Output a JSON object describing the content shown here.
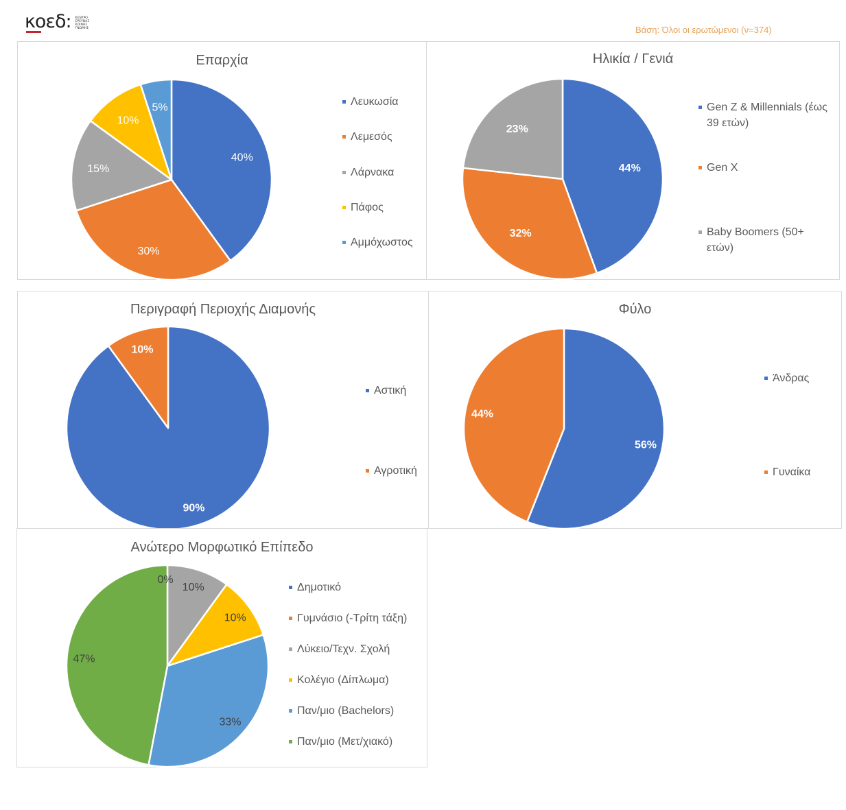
{
  "header": {
    "logo_text": "κοεδ:",
    "logo_small_lines": [
      "ΚΕΝΤΡΟ",
      "ΕΡΕΥΝΑΣ",
      "ΚΟΙΝΗΣ",
      "ΓΝΩΜΗΣ"
    ],
    "base_note": "Βάση: Όλοι οι ερωτώμενοι (ν=374)"
  },
  "chart_data": [
    {
      "type": "pie",
      "title": "Επαρχία",
      "categories": [
        "Λευκωσία",
        "Λεμεσός",
        "Λάρνακα",
        "Πάφος",
        "Αμμόχωστος"
      ],
      "values": [
        40,
        30,
        15,
        10,
        5
      ],
      "labels": [
        "40%",
        "30%",
        "15%",
        "10%",
        "5%"
      ],
      "colors": [
        "#4472c4",
        "#ed7d31",
        "#a5a5a5",
        "#ffc000",
        "#5b9bd5"
      ],
      "label_color": "#ffffff",
      "label_bold": false,
      "legend_position": "right"
    },
    {
      "type": "pie",
      "title": "Ηλικία / Γενιά",
      "categories": [
        "Gen Z & Millennials (έως 39 ετών)",
        "Gen X",
        "Baby Boomers (50+ ετών)"
      ],
      "values": [
        44,
        32,
        23
      ],
      "labels": [
        "44%",
        "32%",
        "23%"
      ],
      "colors": [
        "#4472c4",
        "#ed7d31",
        "#a5a5a5"
      ],
      "label_color": "#ffffff",
      "label_bold": true,
      "legend_position": "right"
    },
    {
      "type": "pie",
      "title": "Περιγραφή Περιοχής Διαμονής",
      "categories": [
        "Αστική",
        "Αγροτική"
      ],
      "values": [
        90,
        10
      ],
      "labels": [
        "90%",
        "10%"
      ],
      "colors": [
        "#4472c4",
        "#ed7d31"
      ],
      "label_color": "#ffffff",
      "label_bold": true,
      "legend_position": "right"
    },
    {
      "type": "pie",
      "title": "Φύλο",
      "categories": [
        "Άνδρας",
        "Γυναίκα"
      ],
      "values": [
        56,
        44
      ],
      "labels": [
        "56%",
        "44%"
      ],
      "colors": [
        "#4472c4",
        "#ed7d31"
      ],
      "label_color": "#ffffff",
      "label_bold": true,
      "legend_position": "right"
    },
    {
      "type": "pie",
      "title": "Ανώτερο Μορφωτικό Επίπεδο",
      "categories": [
        "Δημοτικό",
        "Γυμνάσιο (-Τρίτη τάξη)",
        "Λύκειο/Τεχν. Σχολή",
        "Κολέγιο (Δίπλωμα)",
        "Παν/μιο (Bachelors)",
        "Παν/μιο (Μετ/χιακό)"
      ],
      "values": [
        0,
        0,
        10,
        10,
        33,
        47
      ],
      "labels": [
        "0%",
        "",
        "10%",
        "10%",
        "33%",
        "47%"
      ],
      "colors": [
        "#4472c4",
        "#ed7d31",
        "#a5a5a5",
        "#ffc000",
        "#5b9bd5",
        "#70ad47"
      ],
      "label_color": "#404040",
      "label_bold": false,
      "legend_position": "right"
    }
  ]
}
